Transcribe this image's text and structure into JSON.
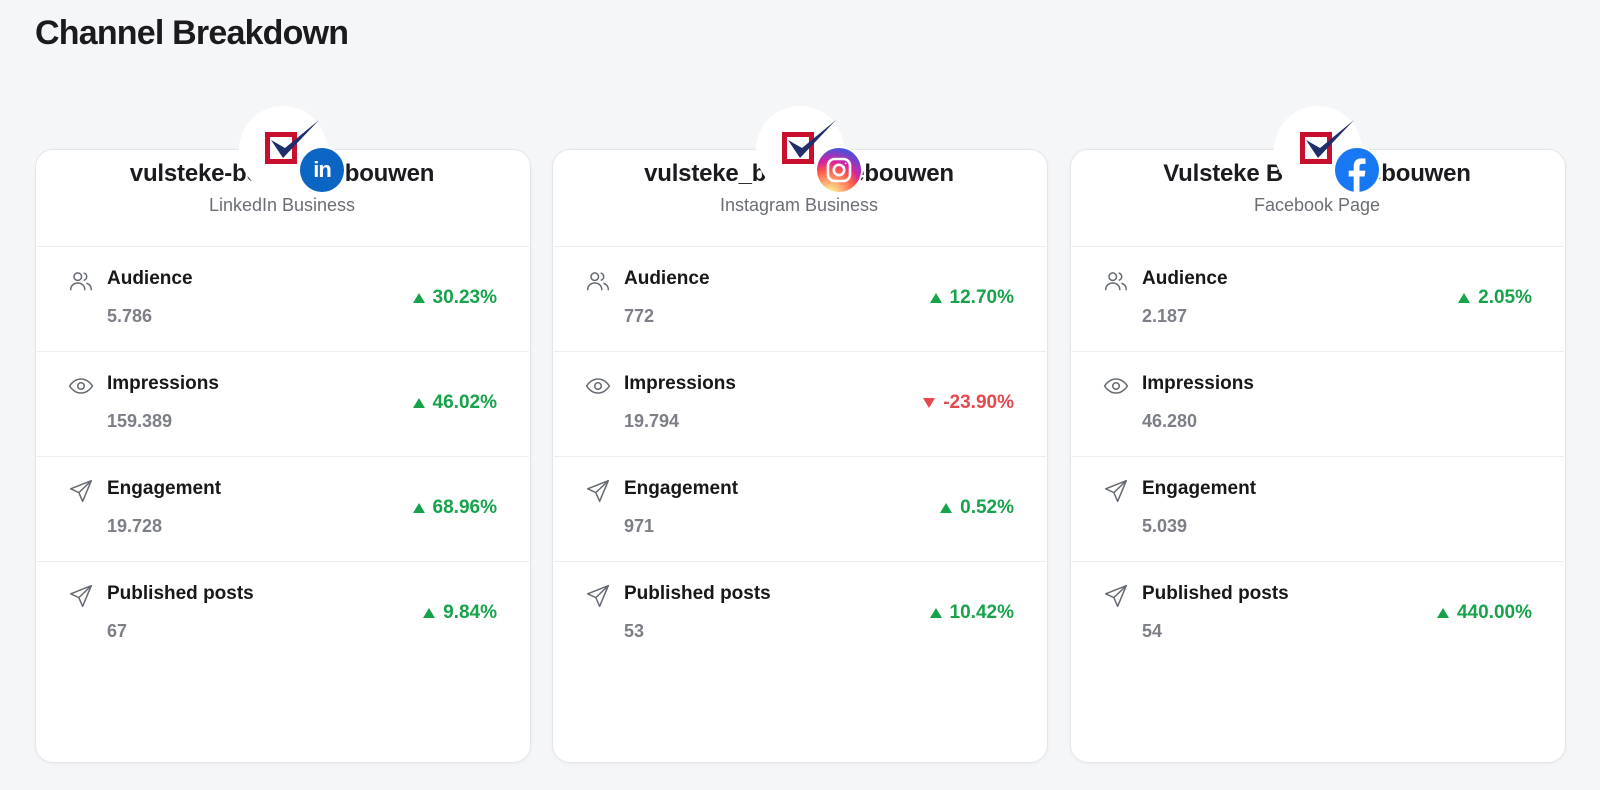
{
  "page": {
    "title": "Channel Breakdown"
  },
  "colors": {
    "positive": "#16a34a",
    "negative": "#e5484d",
    "brand_red": "#c8102e",
    "brand_navy": "#1e2f6b"
  },
  "channels": [
    {
      "name": "vulsteke-bedrijfsgebouwen",
      "type": "LinkedIn Business",
      "network_icon": "linkedin-icon",
      "network_glyph": "in",
      "metrics": [
        {
          "icon": "users-icon",
          "label": "Audience",
          "value": "5.786",
          "change": "30.23%",
          "direction": "up"
        },
        {
          "icon": "eye-icon",
          "label": "Impressions",
          "value": "159.389",
          "change": "46.02%",
          "direction": "up"
        },
        {
          "icon": "send-icon",
          "label": "Engagement",
          "value": "19.728",
          "change": "68.96%",
          "direction": "up"
        },
        {
          "icon": "send-icon",
          "label": "Published posts",
          "value": "67",
          "change": "9.84%",
          "direction": "up"
        }
      ]
    },
    {
      "name": "vulsteke_bedrijfsgebouwen",
      "type": "Instagram Business",
      "network_icon": "instagram-icon",
      "metrics": [
        {
          "icon": "users-icon",
          "label": "Audience",
          "value": "772",
          "change": "12.70%",
          "direction": "up"
        },
        {
          "icon": "eye-icon",
          "label": "Impressions",
          "value": "19.794",
          "change": "-23.90%",
          "direction": "down"
        },
        {
          "icon": "send-icon",
          "label": "Engagement",
          "value": "971",
          "change": "0.52%",
          "direction": "up"
        },
        {
          "icon": "send-icon",
          "label": "Published posts",
          "value": "53",
          "change": "10.42%",
          "direction": "up"
        }
      ]
    },
    {
      "name": "Vulsteke Bedrijfsgebouwen",
      "type": "Facebook Page",
      "network_icon": "facebook-icon",
      "metrics": [
        {
          "icon": "users-icon",
          "label": "Audience",
          "value": "2.187",
          "change": "2.05%",
          "direction": "up"
        },
        {
          "icon": "eye-icon",
          "label": "Impressions",
          "value": "46.280",
          "change": "",
          "direction": "none"
        },
        {
          "icon": "send-icon",
          "label": "Engagement",
          "value": "5.039",
          "change": "",
          "direction": "none"
        },
        {
          "icon": "send-icon",
          "label": "Published posts",
          "value": "54",
          "change": "440.00%",
          "direction": "up"
        }
      ]
    }
  ]
}
